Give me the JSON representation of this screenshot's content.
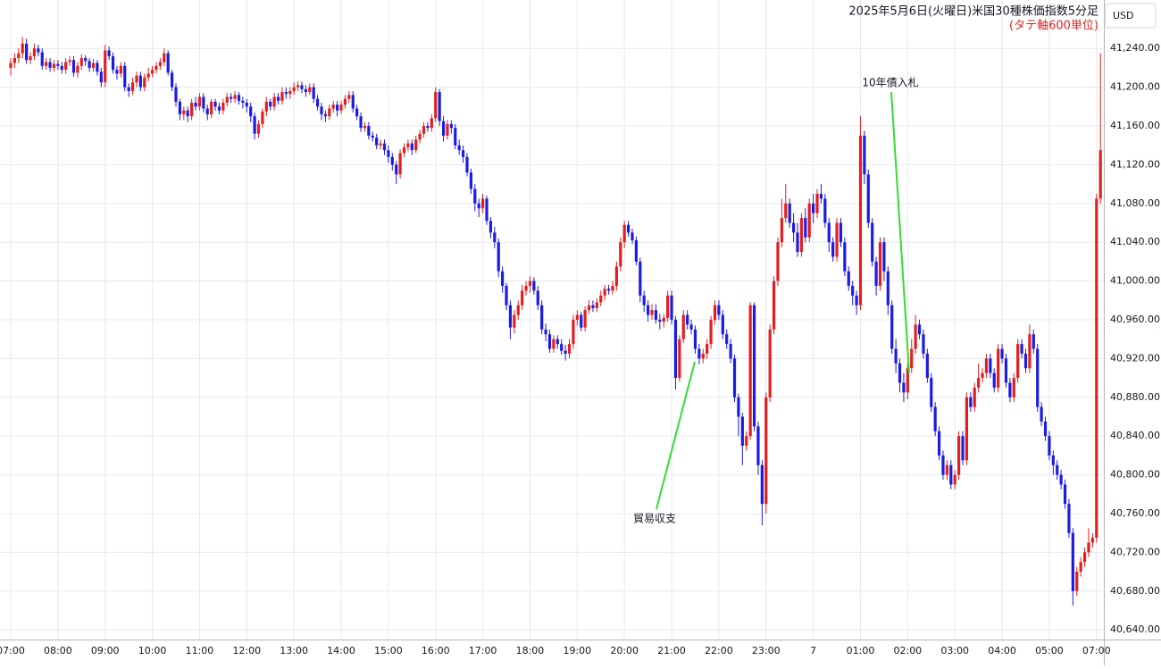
{
  "chart_data": {
    "type": "candlestick",
    "title": "2025年5月6日(火曜日)米国30種株価指数5分足",
    "subtitle": "(タテ軸600単位)",
    "unit": "USD",
    "up_color": "#e21f1f",
    "down_color": "#1c1ce0",
    "grid": true,
    "annotations": [
      {
        "text": "10年債入札"
      },
      {
        "text": "貿易収支"
      }
    ],
    "categories": [
      "07:00",
      null,
      null,
      null,
      null,
      null,
      null,
      null,
      null,
      null,
      null,
      null,
      "08:00",
      null,
      null,
      null,
      null,
      null,
      null,
      null,
      null,
      null,
      null,
      null,
      "09:00",
      null,
      null,
      null,
      null,
      null,
      null,
      null,
      null,
      null,
      null,
      null,
      "10:00",
      null,
      null,
      null,
      null,
      null,
      null,
      null,
      null,
      null,
      null,
      null,
      "11:00",
      null,
      null,
      null,
      null,
      null,
      null,
      null,
      null,
      null,
      null,
      null,
      "12:00",
      null,
      null,
      null,
      null,
      null,
      null,
      null,
      null,
      null,
      null,
      null,
      "13:00",
      null,
      null,
      null,
      null,
      null,
      null,
      null,
      null,
      null,
      null,
      null,
      "14:00",
      null,
      null,
      null,
      null,
      null,
      null,
      null,
      null,
      null,
      null,
      null,
      "15:00",
      null,
      null,
      null,
      null,
      null,
      null,
      null,
      null,
      null,
      null,
      null,
      "16:00",
      null,
      null,
      null,
      null,
      null,
      null,
      null,
      null,
      null,
      null,
      null,
      "17:00",
      null,
      null,
      null,
      null,
      null,
      null,
      null,
      null,
      null,
      null,
      null,
      "18:00",
      null,
      null,
      null,
      null,
      null,
      null,
      null,
      null,
      null,
      null,
      null,
      "19:00",
      null,
      null,
      null,
      null,
      null,
      null,
      null,
      null,
      null,
      null,
      null,
      "20:00",
      null,
      null,
      null,
      null,
      null,
      null,
      null,
      null,
      null,
      null,
      null,
      "21:00",
      null,
      null,
      null,
      null,
      null,
      null,
      null,
      null,
      null,
      null,
      null,
      "22:00",
      null,
      null,
      null,
      null,
      null,
      null,
      null,
      null,
      null,
      null,
      null,
      "23:00",
      null,
      null,
      null,
      null,
      null,
      null,
      null,
      null,
      null,
      null,
      null,
      "7",
      null,
      null,
      null,
      null,
      null,
      null,
      null,
      null,
      null,
      null,
      null,
      "01:00",
      null,
      null,
      null,
      null,
      null,
      null,
      null,
      null,
      null,
      null,
      null,
      "02:00",
      null,
      null,
      null,
      null,
      null,
      null,
      null,
      null,
      null,
      null,
      null,
      "03:00",
      null,
      null,
      null,
      null,
      null,
      null,
      null,
      null,
      null,
      null,
      null,
      "04:00",
      null,
      null,
      null,
      null,
      null,
      null,
      null,
      null,
      null,
      null,
      null,
      "05:00",
      null,
      null,
      null,
      null,
      null,
      null,
      null,
      null,
      null,
      null,
      null,
      "07:00",
      null
    ],
    "open": [
      41220,
      41225,
      41230,
      41235,
      41245,
      41228,
      41232,
      41240,
      41236,
      41222,
      41226,
      41220,
      41224,
      41222,
      41218,
      41226,
      41228,
      41215,
      41222,
      41230,
      41227,
      41220,
      41225,
      41216,
      41205,
      41238,
      41232,
      41218,
      41214,
      41222,
      41200,
      41196,
      41205,
      41212,
      41200,
      41210,
      41214,
      41218,
      41222,
      41226,
      41235,
      41215,
      41200,
      41185,
      41172,
      41176,
      41170,
      41184,
      41180,
      41190,
      41178,
      41172,
      41185,
      41180,
      41176,
      41184,
      41190,
      41188,
      41192,
      41186,
      41184,
      41180,
      41170,
      41152,
      41162,
      41175,
      41185,
      41180,
      41190,
      41186,
      41195,
      41193,
      41196,
      41200,
      41202,
      41198,
      41195,
      41200,
      41188,
      41180,
      41172,
      41170,
      41178,
      41182,
      41176,
      41182,
      41188,
      41192,
      41178,
      41170,
      41158,
      41160,
      41150,
      41148,
      41140,
      41142,
      41135,
      41128,
      41120,
      41110,
      41132,
      41138,
      41142,
      41135,
      41146,
      41152,
      41160,
      41158,
      41168,
      41195,
      41165,
      41150,
      41162,
      41158,
      41140,
      41135,
      41128,
      41112,
      41095,
      41080,
      41075,
      41085,
      41062,
      41050,
      41040,
      41010,
      40995,
      40975,
      40952,
      40965,
      40975,
      40990,
      40995,
      41000,
      40990,
      40975,
      40950,
      40945,
      40930,
      40940,
      40935,
      40928,
      40925,
      40935,
      40960,
      40965,
      40952,
      40970,
      40975,
      40972,
      40978,
      40985,
      40992,
      40990,
      40995,
      41015,
      41040,
      41058,
      41050,
      41042,
      41020,
      40985,
      40975,
      40965,
      40970,
      40960,
      40958,
      40962,
      40985,
      40960,
      40900,
      40940,
      40965,
      40955,
      40950,
      40930,
      40920,
      40925,
      40935,
      40960,
      40975,
      40965,
      40945,
      40935,
      40920,
      40880,
      40860,
      40830,
      40840,
      40975,
      40850,
      40810,
      40770,
      40880,
      40950,
      41000,
      41040,
      41065,
      41080,
      41060,
      41050,
      41030,
      41065,
      41045,
      41080,
      41070,
      41090,
      41085,
      41060,
      41040,
      41025,
      41060,
      41040,
      41010,
      40995,
      40985,
      40975,
      41150,
      41110,
      41060,
      41020,
      40995,
      41040,
      41010,
      40975,
      40930,
      40915,
      40895,
      40885,
      40910,
      40930,
      40955,
      40945,
      40925,
      40900,
      40870,
      40845,
      40820,
      40800,
      40810,
      40790,
      40800,
      40840,
      40815,
      40880,
      40870,
      40890,
      40900,
      40905,
      40920,
      40905,
      40890,
      40930,
      40920,
      40895,
      40880,
      40900,
      40935,
      40925,
      40910,
      40945,
      40930,
      40870,
      40855,
      40840,
      40820,
      40810,
      40800,
      40790,
      40770,
      40740,
      40680,
      40700,
      40710,
      40720,
      40730,
      40735,
      41085
    ],
    "high": [
      41230,
      41235,
      41240,
      41252,
      41250,
      41236,
      41245,
      41244,
      41240,
      41230,
      41230,
      41228,
      41228,
      41226,
      41230,
      41232,
      41232,
      41226,
      41234,
      41233,
      41230,
      41229,
      41228,
      41220,
      41244,
      41242,
      41236,
      41222,
      41226,
      41226,
      41204,
      41210,
      41216,
      41216,
      41214,
      41220,
      41222,
      41226,
      41230,
      41240,
      41238,
      41218,
      41204,
      41188,
      41180,
      41180,
      41188,
      41190,
      41194,
      41194,
      41182,
      41188,
      41188,
      41184,
      41188,
      41194,
      41194,
      41196,
      41195,
      41190,
      41188,
      41184,
      41174,
      41166,
      41178,
      41190,
      41188,
      41194,
      41194,
      41200,
      41200,
      41200,
      41205,
      41206,
      41206,
      41202,
      41204,
      41204,
      41192,
      41184,
      41176,
      41182,
      41186,
      41186,
      41186,
      41192,
      41196,
      41196,
      41182,
      41174,
      41164,
      41164,
      41154,
      41152,
      41146,
      41146,
      41140,
      41132,
      41124,
      41136,
      41142,
      41146,
      41146,
      41150,
      41156,
      41164,
      41164,
      41172,
      41200,
      41198,
      41170,
      41166,
      41166,
      41162,
      41146,
      41140,
      41132,
      41116,
      41100,
      41085,
      41090,
      41088,
      41066,
      41056,
      41044,
      41015,
      40998,
      40980,
      40970,
      40980,
      40996,
      41000,
      41005,
      41004,
      40995,
      40980,
      40956,
      40950,
      40944,
      40944,
      40940,
      40934,
      40940,
      40965,
      40970,
      40968,
      40974,
      40980,
      40980,
      40982,
      40990,
      40996,
      40996,
      41000,
      41020,
      41045,
      41062,
      41062,
      41054,
      41046,
      41024,
      40990,
      40980,
      40976,
      40976,
      40966,
      40966,
      40990,
      40990,
      40964,
      40944,
      40970,
      40970,
      40960,
      40954,
      40935,
      40930,
      40940,
      40964,
      40980,
      40980,
      40970,
      40950,
      40940,
      40924,
      40884,
      40864,
      40845,
      40978,
      40978,
      40855,
      40815,
      40885,
      40955,
      41005,
      41045,
      41085,
      41100,
      41085,
      41070,
      41060,
      41070,
      41075,
      41085,
      41090,
      41095,
      41100,
      41090,
      41065,
      41045,
      41065,
      41065,
      41045,
      41015,
      41000,
      40990,
      41170,
      41155,
      41115,
      41065,
      41025,
      41045,
      41045,
      41015,
      40980,
      40940,
      40920,
      40905,
      40915,
      40940,
      40965,
      40960,
      40950,
      40930,
      40905,
      40875,
      40850,
      40825,
      40815,
      40815,
      40805,
      40845,
      40845,
      40885,
      40885,
      40895,
      40915,
      40910,
      40925,
      40925,
      40910,
      40935,
      40935,
      40925,
      40900,
      40905,
      40940,
      40940,
      40930,
      40955,
      40950,
      40935,
      40875,
      40860,
      40845,
      40825,
      40815,
      40805,
      40795,
      40775,
      40745,
      40705,
      40715,
      40725,
      40745,
      40740,
      41090,
      41235
    ],
    "low": [
      41212,
      41220,
      41225,
      41230,
      41224,
      41224,
      41228,
      41232,
      41218,
      41218,
      41216,
      41216,
      41218,
      41214,
      41214,
      41222,
      41211,
      41210,
      41218,
      41222,
      41216,
      41216,
      41212,
      41200,
      41200,
      41228,
      41214,
      41208,
      41210,
      41196,
      41190,
      41192,
      41200,
      41196,
      41196,
      41206,
      41210,
      41214,
      41218,
      41222,
      41212,
      41196,
      41180,
      41166,
      41166,
      41164,
      41166,
      41176,
      41176,
      41174,
      41166,
      41168,
      41176,
      41172,
      41172,
      41180,
      41184,
      41184,
      41182,
      41178,
      41174,
      41164,
      41146,
      41148,
      41158,
      41170,
      41176,
      41176,
      41182,
      41182,
      41188,
      41188,
      41192,
      41196,
      41194,
      41190,
      41192,
      41184,
      41176,
      41166,
      41164,
      41166,
      41174,
      41170,
      41172,
      41178,
      41184,
      41174,
      41166,
      41154,
      41154,
      41146,
      41144,
      41136,
      41136,
      41130,
      41122,
      41114,
      41100,
      41106,
      41128,
      41134,
      41130,
      41132,
      41142,
      41148,
      41154,
      41154,
      41164,
      41160,
      41144,
      41146,
      41152,
      41136,
      41130,
      41122,
      41108,
      41090,
      41072,
      41066,
      41070,
      41058,
      41044,
      41034,
      41004,
      40988,
      40970,
      40940,
      40946,
      40960,
      40970,
      40985,
      40988,
      40986,
      40970,
      40945,
      40938,
      40926,
      40926,
      40930,
      40924,
      40918,
      40920,
      40930,
      40954,
      40948,
      40948,
      40966,
      40968,
      40968,
      40974,
      40980,
      40986,
      40986,
      40990,
      41010,
      41034,
      41046,
      41038,
      41016,
      40978,
      40968,
      40958,
      40960,
      40956,
      40950,
      40952,
      40958,
      40955,
      40888,
      40896,
      40936,
      40950,
      40945,
      40925,
      40914,
      40915,
      40920,
      40930,
      40955,
      40960,
      40940,
      40930,
      40915,
      40875,
      40840,
      40810,
      40825,
      40836,
      40845,
      40800,
      40748,
      40760,
      40875,
      40945,
      40995,
      41035,
      41060,
      41055,
      41040,
      41025,
      41025,
      41040,
      41040,
      41060,
      41065,
      41080,
      41055,
      41030,
      41020,
      41020,
      41035,
      41005,
      40990,
      40975,
      40965,
      40970,
      41100,
      41055,
      41015,
      40985,
      40990,
      41000,
      40965,
      40925,
      40905,
      40885,
      40875,
      40878,
      40905,
      40925,
      40940,
      40920,
      40895,
      40865,
      40840,
      40815,
      40795,
      40795,
      40785,
      40785,
      40795,
      40810,
      40810,
      40865,
      40865,
      40885,
      40895,
      40900,
      40900,
      40885,
      40885,
      40915,
      40890,
      40875,
      40875,
      40895,
      40920,
      40905,
      40905,
      40925,
      40865,
      40850,
      40835,
      40815,
      40800,
      40795,
      40785,
      40765,
      40735,
      40665,
      40675,
      40695,
      40705,
      40715,
      40725,
      40730,
      41080
    ],
    "close": [
      41225,
      41230,
      41235,
      41245,
      41228,
      41232,
      41240,
      41236,
      41222,
      41226,
      41220,
      41224,
      41222,
      41218,
      41226,
      41228,
      41215,
      41222,
      41230,
      41227,
      41220,
      41225,
      41216,
      41205,
      41238,
      41232,
      41218,
      41214,
      41222,
      41200,
      41196,
      41205,
      41212,
      41200,
      41210,
      41214,
      41218,
      41222,
      41226,
      41235,
      41215,
      41200,
      41185,
      41172,
      41176,
      41170,
      41184,
      41180,
      41190,
      41178,
      41172,
      41185,
      41180,
      41176,
      41184,
      41190,
      41188,
      41192,
      41186,
      41184,
      41180,
      41170,
      41152,
      41162,
      41175,
      41185,
      41180,
      41190,
      41186,
      41195,
      41193,
      41196,
      41200,
      41202,
      41198,
      41195,
      41200,
      41188,
      41180,
      41172,
      41170,
      41178,
      41182,
      41176,
      41182,
      41188,
      41192,
      41178,
      41170,
      41158,
      41160,
      41150,
      41148,
      41140,
      41142,
      41135,
      41128,
      41120,
      41110,
      41132,
      41138,
      41142,
      41135,
      41146,
      41152,
      41160,
      41158,
      41168,
      41195,
      41165,
      41150,
      41162,
      41158,
      41140,
      41135,
      41128,
      41112,
      41095,
      41080,
      41075,
      41085,
      41062,
      41050,
      41040,
      41010,
      40995,
      40975,
      40952,
      40965,
      40975,
      40990,
      40995,
      41000,
      40990,
      40975,
      40950,
      40945,
      40930,
      40940,
      40935,
      40928,
      40925,
      40935,
      40960,
      40965,
      40952,
      40970,
      40975,
      40972,
      40978,
      40985,
      40992,
      40990,
      40995,
      41015,
      41040,
      41058,
      41050,
      41042,
      41020,
      40985,
      40975,
      40965,
      40970,
      40960,
      40958,
      40962,
      40985,
      40960,
      40900,
      40940,
      40965,
      40955,
      40950,
      40930,
      40920,
      40925,
      40935,
      40960,
      40975,
      40965,
      40945,
      40935,
      40920,
      40880,
      40860,
      40830,
      40840,
      40975,
      40850,
      40810,
      40770,
      40880,
      40950,
      41000,
      41040,
      41065,
      41080,
      41060,
      41050,
      41030,
      41065,
      41045,
      41080,
      41070,
      41090,
      41085,
      41060,
      41040,
      41025,
      41060,
      41040,
      41010,
      40995,
      40985,
      40975,
      41150,
      41110,
      41060,
      41020,
      40995,
      41040,
      41010,
      40975,
      40930,
      40915,
      40895,
      40885,
      40910,
      40930,
      40955,
      40945,
      40925,
      40900,
      40870,
      40845,
      40820,
      40800,
      40810,
      40790,
      40800,
      40840,
      40815,
      40880,
      40870,
      40890,
      40900,
      40905,
      40920,
      40905,
      40890,
      40930,
      40920,
      40895,
      40880,
      40900,
      40935,
      40925,
      40910,
      40945,
      40930,
      40870,
      40855,
      40840,
      40820,
      40810,
      40800,
      40790,
      40770,
      40740,
      40680,
      40700,
      40710,
      40720,
      40730,
      40735,
      41085,
      41135
    ],
    "ylim": [
      40630,
      41290
    ],
    "yticks": [
      {
        "value": 40640,
        "label": "40,640.00"
      },
      {
        "value": 40680,
        "label": "40,680.00"
      },
      {
        "value": 40720,
        "label": "40,720.00"
      },
      {
        "value": 40760,
        "label": "40,760.00"
      },
      {
        "value": 40800,
        "label": "40,800.00"
      },
      {
        "value": 40840,
        "label": "40,840.00"
      },
      {
        "value": 40880,
        "label": "40,880.00"
      },
      {
        "value": 40920,
        "label": "40,920.00"
      },
      {
        "value": 40960,
        "label": "40,960.00"
      },
      {
        "value": 41000,
        "label": "41,000.00"
      },
      {
        "value": 41040,
        "label": "41,040.00"
      },
      {
        "value": 41080,
        "label": "41,080.00"
      },
      {
        "value": 41120,
        "label": "41,120.00"
      },
      {
        "value": 41160,
        "label": "41,160.00"
      },
      {
        "value": 41200,
        "label": "41,200.00"
      },
      {
        "value": 41240,
        "label": "41,240.00"
      }
    ]
  }
}
